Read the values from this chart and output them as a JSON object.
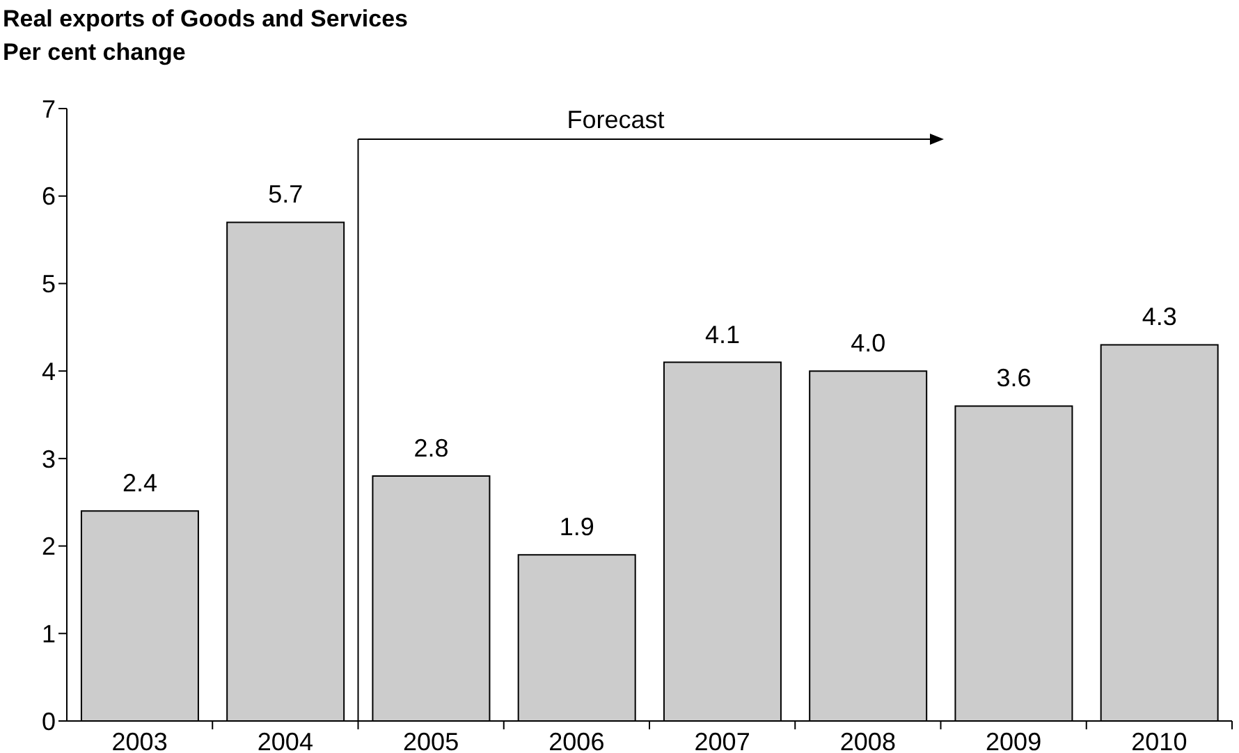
{
  "chart_data": {
    "type": "bar",
    "title": "Real exports of Goods and Services",
    "subtitle": "Per cent change",
    "categories": [
      "2003",
      "2004",
      "2005",
      "2006",
      "2007",
      "2008",
      "2009",
      "2010"
    ],
    "values": [
      2.4,
      5.7,
      2.8,
      1.9,
      4.1,
      4.0,
      3.6,
      4.3
    ],
    "value_labels": [
      "2.4",
      "5.7",
      "2.8",
      "1.9",
      "4.1",
      "4.0",
      "3.6",
      "4.3"
    ],
    "color": "#cccccc",
    "ylim": [
      0,
      7
    ],
    "yticks": [
      0,
      1,
      2,
      3,
      4,
      5,
      6,
      7
    ],
    "annotations": [
      "Forecast"
    ]
  }
}
